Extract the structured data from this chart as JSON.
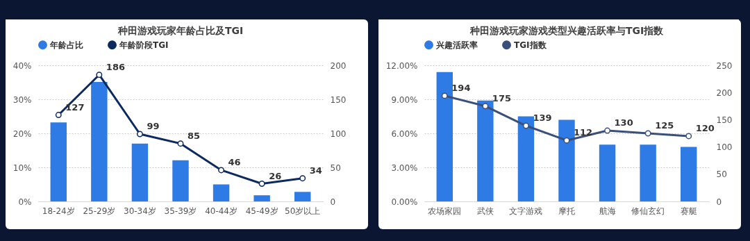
{
  "chart_data": [
    {
      "type": "bar",
      "title": "种田游戏玩家年龄占比及TGI",
      "categories": [
        "18-24岁",
        "25-29岁",
        "30-34岁",
        "35-39岁",
        "40-44岁",
        "45-49岁",
        "50岁以上"
      ],
      "series": [
        {
          "name": "年龄占比",
          "color": "#2e7be6",
          "values": [
            23.2,
            35.1,
            17.0,
            12.1,
            5.0,
            1.8,
            2.8
          ]
        },
        {
          "name": "年龄阶段TGI",
          "type": "line",
          "axis": "y2",
          "color": "#0d2a5e",
          "values": [
            127,
            186,
            99,
            85,
            46,
            26,
            34
          ],
          "value_labels": [
            "127",
            "186",
            "99",
            "85",
            "46",
            "26",
            "34"
          ]
        }
      ],
      "ylim": [
        0,
        40
      ],
      "yticks": [
        {
          "value": 0,
          "label": "0%"
        },
        {
          "value": 10,
          "label": "10%"
        },
        {
          "value": 20,
          "label": "20%"
        },
        {
          "value": 30,
          "label": "30%"
        },
        {
          "value": 40,
          "label": "40%"
        }
      ],
      "y2lim": [
        0,
        200
      ],
      "y2ticks": [
        0,
        50,
        100,
        150,
        200
      ],
      "grid": "y",
      "legend": "top",
      "marker": "circle"
    },
    {
      "type": "bar",
      "title": "种田游戏玩家游戏类型兴趣活跃率与TGI指数",
      "categories": [
        "农场家园",
        "武侠",
        "文字游戏",
        "摩托",
        "航海",
        "修仙玄幻",
        "赛艇"
      ],
      "series": [
        {
          "name": "兴趣活跃率",
          "color": "#2e7be6",
          "values": [
            11.4,
            8.9,
            7.5,
            7.2,
            5.0,
            5.0,
            4.8
          ]
        },
        {
          "name": "TGI指数",
          "type": "line",
          "axis": "y2",
          "color": "#3a4f7a",
          "values": [
            194,
            175,
            139,
            112,
            130,
            125,
            120
          ],
          "value_labels": [
            "194",
            "175",
            "139",
            "112",
            "130",
            "125",
            "120"
          ]
        }
      ],
      "ylim": [
        0,
        12
      ],
      "yticks": [
        {
          "value": 0,
          "label": "0.00%"
        },
        {
          "value": 3,
          "label": "3.00%"
        },
        {
          "value": 6,
          "label": "6.00%"
        },
        {
          "value": 9,
          "label": "9.00%"
        },
        {
          "value": 12,
          "label": "12.00%"
        }
      ],
      "y2lim": [
        0,
        250
      ],
      "y2ticks": [
        0,
        50,
        100,
        150,
        200,
        250
      ],
      "grid": "y",
      "legend": "top",
      "marker": "circle"
    }
  ]
}
